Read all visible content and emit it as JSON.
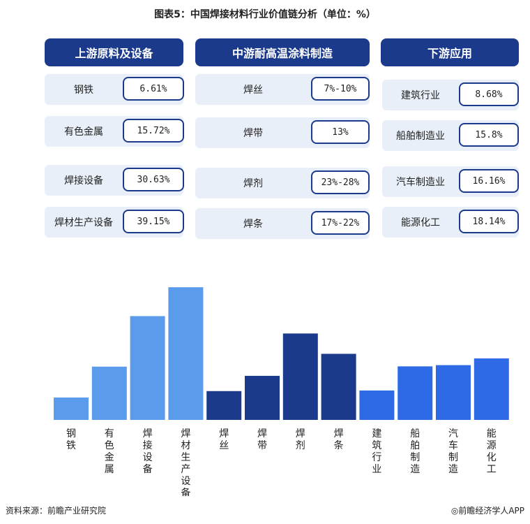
{
  "title": "图表5：中国焊接材料行业价值链分析（单位：%）",
  "columns": [
    {
      "header": "上游原料及设备",
      "rows": [
        {
          "label": "钢铁",
          "value": "6.61%"
        },
        {
          "label": "有色金属",
          "value": "15.72%"
        },
        {
          "label": "焊接设备",
          "value": "30.63%"
        },
        {
          "label": "焊材生产设备",
          "value": "39.15%"
        }
      ]
    },
    {
      "header": "中游耐高温涂料制造",
      "rows": [
        {
          "label": "焊丝",
          "value": "7%-10%"
        },
        {
          "label": "焊带",
          "value": "13%"
        },
        {
          "label": "焊剂",
          "value": "23%-28%"
        },
        {
          "label": "焊条",
          "value": "17%-22%"
        }
      ]
    },
    {
      "header": "下游应用",
      "rows": [
        {
          "label": "建筑行业",
          "value": "8.68%"
        },
        {
          "label": "船舶制造业",
          "value": "15.8%"
        },
        {
          "label": "汽车制造业",
          "value": "16.16%"
        },
        {
          "label": "能源化工",
          "value": "18.14%"
        }
      ]
    }
  ],
  "chart_data": {
    "type": "bar",
    "categories": [
      "钢铁",
      "有色金属",
      "焊接设备",
      "焊材生产设备",
      "焊丝",
      "焊带",
      "焊剂",
      "焊条",
      "建筑行业",
      "船舶制造",
      "汽车制造",
      "能源化工"
    ],
    "values": [
      6.61,
      15.72,
      30.63,
      39.15,
      8.5,
      13,
      25.5,
      19.5,
      8.68,
      15.8,
      16.16,
      18.14
    ],
    "colors": [
      "#5b9bec",
      "#5b9bec",
      "#5b9bec",
      "#5b9bec",
      "#1b3a8c",
      "#1b3a8c",
      "#1b3a8c",
      "#1b3a8c",
      "#2f6ae6",
      "#2f6ae6",
      "#2f6ae6",
      "#2f6ae6"
    ],
    "ylim": [
      0,
      40
    ],
    "grid": false,
    "title": "",
    "xlabel": "",
    "ylabel": ""
  },
  "footer": {
    "source": "资料来源：前瞻产业研究院",
    "brand": "◎前瞻经济学人APP"
  }
}
